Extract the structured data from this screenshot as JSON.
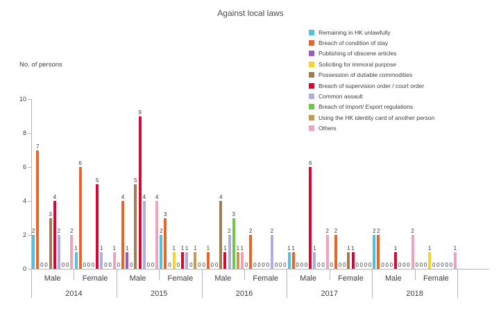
{
  "chart": {
    "title": "Against local laws",
    "y_axis_label": "No. of persons"
  },
  "chart_data": {
    "type": "bar",
    "title": "Against local laws",
    "ylabel": "No. of persons",
    "xlabel": "",
    "ylim": [
      0,
      10
    ],
    "yticks": [
      0,
      2,
      4,
      6,
      8,
      10
    ],
    "grid": false,
    "legend_position": "top-right",
    "series": [
      {
        "name": "Remaining in HK unlawfully",
        "color": "#4FC2E0"
      },
      {
        "name": "Breach of condition of stay",
        "color": "#EB6327"
      },
      {
        "name": "Publishing of obscene articles",
        "color": "#9C58C8"
      },
      {
        "name": "Soliciting for immoral purpose",
        "color": "#F5D328"
      },
      {
        "name": "Possession of dutiable commodities",
        "color": "#A17C52"
      },
      {
        "name": "Breach of supervision order / court order",
        "color": "#DB0432"
      },
      {
        "name": "Common assault",
        "color": "#B0AEDE"
      },
      {
        "name": "Breach of Import/ Export regulations",
        "color": "#6EC848"
      },
      {
        "name": "Using the HK identity card of another person",
        "color": "#C9984F"
      },
      {
        "name": "Others",
        "color": "#F2A2B8"
      }
    ],
    "years": [
      "2014",
      "2015",
      "2016",
      "2017",
      "2018"
    ],
    "groups": [
      {
        "year": "2014",
        "gender": "Male",
        "values": [
          2,
          7,
          0,
          0,
          3,
          4,
          2,
          0,
          0,
          2
        ]
      },
      {
        "year": "2014",
        "gender": "Female",
        "values": [
          1,
          6,
          0,
          0,
          0,
          5,
          1,
          0,
          0,
          1
        ]
      },
      {
        "year": "2015",
        "gender": "Male",
        "values": [
          0,
          4,
          1,
          0,
          5,
          9,
          4,
          0,
          0,
          4
        ]
      },
      {
        "year": "2015",
        "gender": "Female",
        "values": [
          2,
          3,
          0,
          1,
          0,
          1,
          1,
          0,
          1,
          0
        ]
      },
      {
        "year": "2016",
        "gender": "Male",
        "values": [
          0,
          1,
          0,
          0,
          4,
          1,
          2,
          3,
          1,
          1
        ]
      },
      {
        "year": "2016",
        "gender": "Female",
        "values": [
          0,
          2,
          0,
          0,
          0,
          0,
          2,
          0,
          0,
          0
        ]
      },
      {
        "year": "2017",
        "gender": "Male",
        "values": [
          1,
          1,
          0,
          0,
          0,
          6,
          1,
          0,
          0,
          2
        ]
      },
      {
        "year": "2017",
        "gender": "Female",
        "values": [
          0,
          2,
          0,
          0,
          1,
          1,
          0,
          0,
          0,
          0
        ]
      },
      {
        "year": "2018",
        "gender": "Male",
        "values": [
          2,
          2,
          0,
          0,
          0,
          1,
          0,
          0,
          0,
          2
        ]
      },
      {
        "year": "2018",
        "gender": "Female",
        "values": [
          0,
          0,
          0,
          1,
          0,
          0,
          0,
          0,
          0,
          1
        ]
      }
    ]
  }
}
